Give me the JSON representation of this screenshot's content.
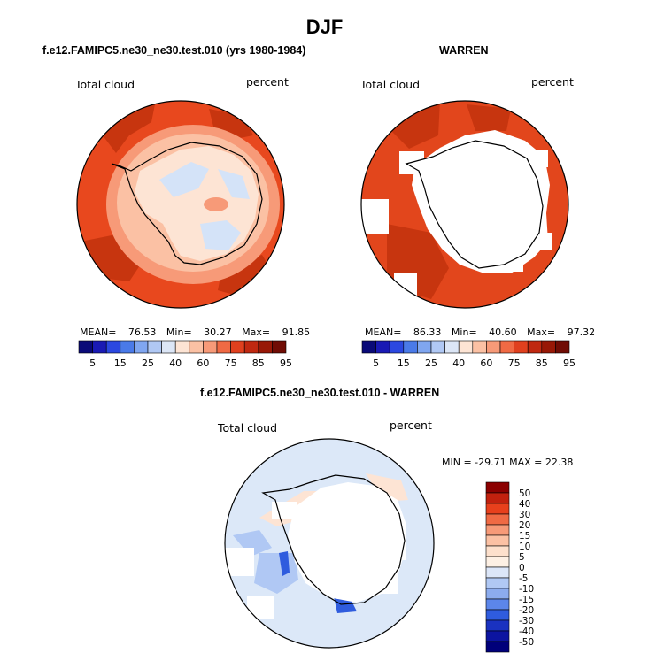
{
  "page": {
    "title": "DJF"
  },
  "panels": [
    {
      "title": "f.e12.FAMIPC5.ne30_ne30.test.010 (yrs 1980-1984)",
      "variable": "Total cloud",
      "units": "percent",
      "mean_label": "MEAN=",
      "mean": "76.53",
      "min_label": "Min=",
      "min": "30.27",
      "max_label": "Max=",
      "max": "91.85"
    },
    {
      "title": "WARREN",
      "variable": "Total cloud",
      "units": "percent",
      "mean_label": "MEAN=",
      "mean": "86.33",
      "min_label": "Min=",
      "min": "40.60",
      "max_label": "Max=",
      "max": "97.32"
    },
    {
      "title": "f.e12.FAMIPC5.ne30_ne30.test.010 - WARREN",
      "variable": "Total cloud",
      "units": "percent",
      "minmax_text": "MIN = -29.71 MAX =  22.38"
    }
  ],
  "colorbar_top": {
    "labels": [
      "5",
      "15",
      "25",
      "40",
      "60",
      "75",
      "85",
      "95"
    ],
    "colors": [
      "#0a0a78",
      "#1a1ab4",
      "#2b48e0",
      "#4a7ae8",
      "#80a6f0",
      "#b0c8f4",
      "#dce6f6",
      "#fde4d4",
      "#fbc1a4",
      "#f79a78",
      "#f06a44",
      "#e0401e",
      "#c02810",
      "#981806",
      "#700c04"
    ]
  },
  "colorbar_diff": {
    "labels": [
      "50",
      "40",
      "30",
      "20",
      "15",
      "10",
      "5",
      "0",
      "-5",
      "-10",
      "-15",
      "-20",
      "-30",
      "-40",
      "-50"
    ],
    "colors": [
      "#8b0000",
      "#c2210e",
      "#e8401c",
      "#f06a44",
      "#f79a78",
      "#fbc1a4",
      "#fde0cc",
      "#fdf0e4",
      "#dce6f8",
      "#b0c8f4",
      "#8cacee",
      "#5c86ea",
      "#2f5cde",
      "#1a32c0",
      "#0c14a0",
      "#00007a"
    ]
  },
  "colors": {
    "ocean_model": "#e8481e",
    "ocean_obs": "#e2461c",
    "storm_track": "#c7350f",
    "diff_bg": "#dce8f8",
    "land_pale": "#d4e3f8",
    "coast": "#000000"
  },
  "chart_data": [
    {
      "type": "heatmap",
      "projection": "south polar stereographic",
      "title": "f.e12.FAMIPC5.ne30_ne30.test.010 (yrs 1980-1984)",
      "variable": "Total cloud",
      "units": "percent",
      "mean": 76.53,
      "min": 30.27,
      "max": 91.85,
      "levels": [
        5,
        10,
        15,
        20,
        25,
        30,
        40,
        50,
        60,
        70,
        75,
        80,
        85,
        90,
        95
      ]
    },
    {
      "type": "heatmap",
      "projection": "south polar stereographic",
      "title": "WARREN",
      "variable": "Total cloud",
      "units": "percent",
      "mean": 86.33,
      "min": 40.6,
      "max": 97.32,
      "levels": [
        5,
        10,
        15,
        20,
        25,
        30,
        40,
        50,
        60,
        70,
        75,
        80,
        85,
        90,
        95
      ]
    },
    {
      "type": "heatmap",
      "projection": "south polar stereographic",
      "title": "f.e12.FAMIPC5.ne30_ne30.test.010 - WARREN",
      "variable": "Total cloud",
      "units": "percent",
      "min": -29.71,
      "max": 22.38,
      "levels": [
        -50,
        -40,
        -30,
        -20,
        -15,
        -10,
        -5,
        0,
        5,
        10,
        15,
        20,
        30,
        40,
        50
      ]
    }
  ]
}
